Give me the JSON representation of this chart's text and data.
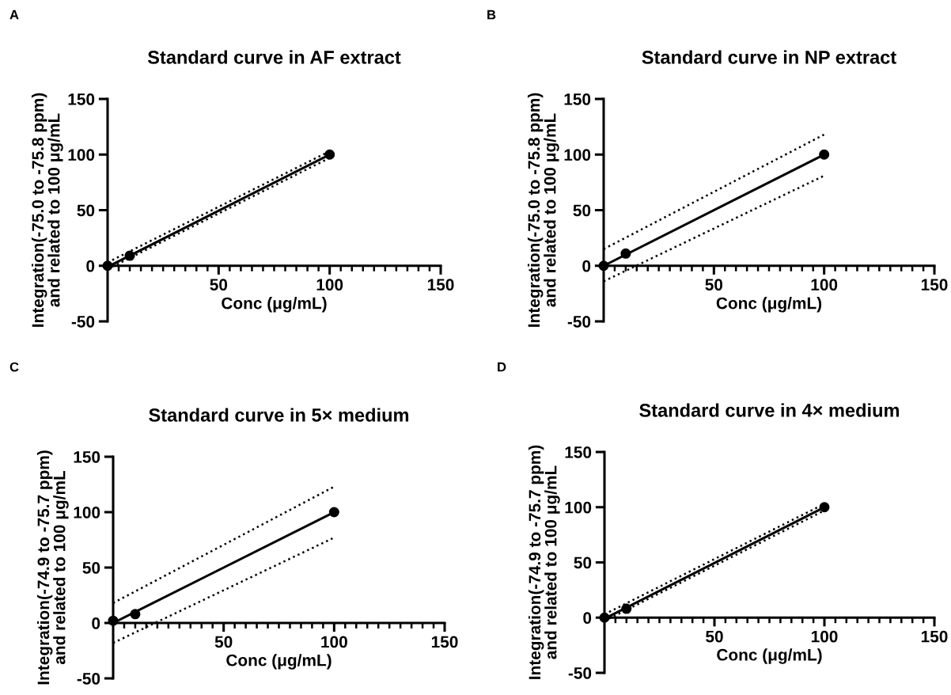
{
  "chart_data": [
    {
      "type": "scatter",
      "title": "Standard curve in AF extract",
      "xlabel": "Conc (μg/mL)",
      "ylabel": "Integration(-75.0 to -75.8 ppm)\nand related to 100 μg/mL",
      "annotations": [
        "A"
      ],
      "xlim": [
        0,
        150
      ],
      "ylim": [
        -50,
        150
      ],
      "xticks": [
        {
          "value": 5,
          "label": null
        },
        {
          "value": 10,
          "label": null
        },
        {
          "value": 15,
          "label": null
        },
        {
          "value": 20,
          "label": null
        },
        {
          "value": 25,
          "label": null
        },
        {
          "value": 30,
          "label": null
        },
        {
          "value": 35,
          "label": null
        },
        {
          "value": 40,
          "label": null
        },
        {
          "value": 45,
          "label": null
        },
        50,
        {
          "value": 55,
          "label": null
        },
        {
          "value": 60,
          "label": null
        },
        {
          "value": 65,
          "label": null
        },
        {
          "value": 70,
          "label": null
        },
        {
          "value": 75,
          "label": null
        },
        {
          "value": 80,
          "label": null
        },
        {
          "value": 85,
          "label": null
        },
        {
          "value": 90,
          "label": null
        },
        {
          "value": 95,
          "label": null
        },
        100,
        {
          "value": 105,
          "label": null
        },
        {
          "value": 110,
          "label": null
        },
        {
          "value": 115,
          "label": null
        },
        {
          "value": 120,
          "label": null
        },
        {
          "value": 125,
          "label": null
        },
        {
          "value": 130,
          "label": null
        },
        {
          "value": 135,
          "label": null
        },
        {
          "value": 140,
          "label": null
        },
        {
          "value": 145,
          "label": null
        },
        150
      ],
      "yticks": [
        -50,
        0,
        50,
        100,
        150
      ],
      "grid": false,
      "legend": false,
      "series": [
        {
          "type": "scatter",
          "marker": "circle",
          "color": "#000000",
          "x": [
            0,
            10,
            100
          ],
          "values": [
            0,
            9,
            100
          ]
        },
        {
          "type": "line",
          "marker": "none",
          "line_style": "solid",
          "color": "#000000",
          "x": [
            0,
            100
          ],
          "values": [
            -1,
            100
          ]
        },
        {
          "type": "line",
          "marker": "none",
          "line_style": "dotted",
          "color": "#000000",
          "x": [
            0,
            100
          ],
          "values": [
            3,
            103
          ]
        },
        {
          "type": "line",
          "marker": "none",
          "line_style": "dotted",
          "color": "#000000",
          "x": [
            0,
            100
          ],
          "values": [
            -3,
            97
          ]
        }
      ]
    },
    {
      "type": "scatter",
      "title": "Standard curve in NP extract",
      "xlabel": "Conc (μg/mL)",
      "ylabel": "Integration(-75.0 to -75.8 ppm)\nand related to 100 μg/mL",
      "annotations": [
        "B"
      ],
      "xlim": [
        0,
        150
      ],
      "ylim": [
        -50,
        150
      ],
      "xticks": [
        {
          "value": 5,
          "label": null
        },
        {
          "value": 10,
          "label": null
        },
        {
          "value": 15,
          "label": null
        },
        {
          "value": 20,
          "label": null
        },
        {
          "value": 25,
          "label": null
        },
        {
          "value": 30,
          "label": null
        },
        {
          "value": 35,
          "label": null
        },
        {
          "value": 40,
          "label": null
        },
        {
          "value": 45,
          "label": null
        },
        50,
        {
          "value": 55,
          "label": null
        },
        {
          "value": 60,
          "label": null
        },
        {
          "value": 65,
          "label": null
        },
        {
          "value": 70,
          "label": null
        },
        {
          "value": 75,
          "label": null
        },
        {
          "value": 80,
          "label": null
        },
        {
          "value": 85,
          "label": null
        },
        {
          "value": 90,
          "label": null
        },
        {
          "value": 95,
          "label": null
        },
        100,
        {
          "value": 105,
          "label": null
        },
        {
          "value": 110,
          "label": null
        },
        {
          "value": 115,
          "label": null
        },
        {
          "value": 120,
          "label": null
        },
        {
          "value": 125,
          "label": null
        },
        {
          "value": 130,
          "label": null
        },
        {
          "value": 135,
          "label": null
        },
        {
          "value": 140,
          "label": null
        },
        {
          "value": 145,
          "label": null
        },
        150
      ],
      "yticks": [
        -50,
        0,
        50,
        100,
        150
      ],
      "grid": false,
      "legend": false,
      "series": [
        {
          "type": "scatter",
          "marker": "circle",
          "color": "#000000",
          "x": [
            0,
            10,
            100
          ],
          "values": [
            0,
            11,
            100
          ]
        },
        {
          "type": "line",
          "marker": "none",
          "line_style": "solid",
          "color": "#000000",
          "x": [
            0,
            100
          ],
          "values": [
            0,
            100
          ]
        },
        {
          "type": "line",
          "marker": "none",
          "line_style": "dotted",
          "color": "#000000",
          "x": [
            0,
            100
          ],
          "values": [
            15,
            118
          ]
        },
        {
          "type": "line",
          "marker": "none",
          "line_style": "dotted",
          "color": "#000000",
          "x": [
            0,
            100
          ],
          "values": [
            -14,
            81
          ]
        }
      ]
    },
    {
      "type": "scatter",
      "title": "Standard curve in 5× medium",
      "xlabel": "Conc (μg/mL)",
      "ylabel": "Integration(-74.9 to -75.7 ppm)\nand related to 100 μg/mL",
      "annotations": [
        "C"
      ],
      "xlim": [
        0,
        150
      ],
      "ylim": [
        -50,
        150
      ],
      "xticks": [
        {
          "value": 5,
          "label": null
        },
        {
          "value": 10,
          "label": null
        },
        {
          "value": 15,
          "label": null
        },
        {
          "value": 20,
          "label": null
        },
        {
          "value": 25,
          "label": null
        },
        {
          "value": 30,
          "label": null
        },
        {
          "value": 35,
          "label": null
        },
        {
          "value": 40,
          "label": null
        },
        {
          "value": 45,
          "label": null
        },
        50,
        {
          "value": 55,
          "label": null
        },
        {
          "value": 60,
          "label": null
        },
        {
          "value": 65,
          "label": null
        },
        {
          "value": 70,
          "label": null
        },
        {
          "value": 75,
          "label": null
        },
        {
          "value": 80,
          "label": null
        },
        {
          "value": 85,
          "label": null
        },
        {
          "value": 90,
          "label": null
        },
        {
          "value": 95,
          "label": null
        },
        100,
        {
          "value": 105,
          "label": null
        },
        {
          "value": 110,
          "label": null
        },
        {
          "value": 115,
          "label": null
        },
        {
          "value": 120,
          "label": null
        },
        {
          "value": 125,
          "label": null
        },
        {
          "value": 130,
          "label": null
        },
        {
          "value": 135,
          "label": null
        },
        {
          "value": 140,
          "label": null
        },
        {
          "value": 145,
          "label": null
        },
        150
      ],
      "yticks": [
        -50,
        0,
        50,
        100,
        150
      ],
      "grid": false,
      "legend": false,
      "series": [
        {
          "type": "scatter",
          "marker": "circle",
          "color": "#000000",
          "x": [
            0,
            10,
            100
          ],
          "values": [
            2,
            8,
            100
          ]
        },
        {
          "type": "line",
          "marker": "none",
          "line_style": "solid",
          "color": "#000000",
          "x": [
            0,
            100
          ],
          "values": [
            0,
            100
          ]
        },
        {
          "type": "line",
          "marker": "none",
          "line_style": "dotted",
          "color": "#000000",
          "x": [
            0,
            100
          ],
          "values": [
            18,
            123
          ]
        },
        {
          "type": "line",
          "marker": "none",
          "line_style": "dotted",
          "color": "#000000",
          "x": [
            0,
            100
          ],
          "values": [
            -18,
            77
          ]
        }
      ]
    },
    {
      "type": "scatter",
      "title": "Standard curve in 4× medium",
      "xlabel": "Conc (μg/mL)",
      "ylabel": "Integration(-74.9 to -75.7 ppm)\nand related to 100 μg/mL",
      "annotations": [
        "D"
      ],
      "xlim": [
        0,
        150
      ],
      "ylim": [
        -50,
        150
      ],
      "xticks": [
        {
          "value": 5,
          "label": null
        },
        {
          "value": 10,
          "label": null
        },
        {
          "value": 15,
          "label": null
        },
        {
          "value": 20,
          "label": null
        },
        {
          "value": 25,
          "label": null
        },
        {
          "value": 30,
          "label": null
        },
        {
          "value": 35,
          "label": null
        },
        {
          "value": 40,
          "label": null
        },
        {
          "value": 45,
          "label": null
        },
        50,
        {
          "value": 55,
          "label": null
        },
        {
          "value": 60,
          "label": null
        },
        {
          "value": 65,
          "label": null
        },
        {
          "value": 70,
          "label": null
        },
        {
          "value": 75,
          "label": null
        },
        {
          "value": 80,
          "label": null
        },
        {
          "value": 85,
          "label": null
        },
        {
          "value": 90,
          "label": null
        },
        {
          "value": 95,
          "label": null
        },
        100,
        {
          "value": 105,
          "label": null
        },
        {
          "value": 110,
          "label": null
        },
        {
          "value": 115,
          "label": null
        },
        {
          "value": 120,
          "label": null
        },
        {
          "value": 125,
          "label": null
        },
        {
          "value": 130,
          "label": null
        },
        {
          "value": 135,
          "label": null
        },
        {
          "value": 140,
          "label": null
        },
        {
          "value": 145,
          "label": null
        },
        150
      ],
      "yticks": [
        -50,
        0,
        50,
        100,
        150
      ],
      "grid": false,
      "legend": false,
      "series": [
        {
          "type": "scatter",
          "marker": "circle",
          "color": "#000000",
          "x": [
            0,
            10,
            100
          ],
          "values": [
            0,
            8,
            100
          ]
        },
        {
          "type": "line",
          "marker": "none",
          "line_style": "solid",
          "color": "#000000",
          "x": [
            0,
            100
          ],
          "values": [
            -1,
            100
          ]
        },
        {
          "type": "line",
          "marker": "none",
          "line_style": "dotted",
          "color": "#000000",
          "x": [
            0,
            100
          ],
          "values": [
            3,
            103
          ]
        },
        {
          "type": "line",
          "marker": "none",
          "line_style": "dotted",
          "color": "#000000",
          "x": [
            0,
            100
          ],
          "values": [
            -3,
            97
          ]
        }
      ]
    }
  ]
}
